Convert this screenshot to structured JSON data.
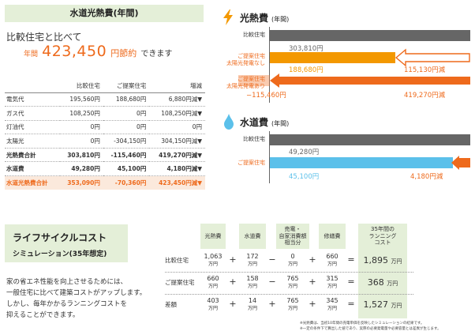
{
  "panel": {
    "title": "水道光熱費(年間)",
    "compare_text": "比較住宅と比べて",
    "saving_prefix": "年間",
    "saving_value": "423,450",
    "saving_unit": "円節約",
    "saving_suffix": "できます"
  },
  "compare_table": {
    "headers": [
      "",
      "比較住宅",
      "ご提案住宅",
      "増減"
    ],
    "rows": [
      {
        "label": "電気代",
        "a": "195,560円",
        "b": "188,680円",
        "d": "6,880円減▼"
      },
      {
        "label": "ガス代",
        "a": "108,250円",
        "b": "0円",
        "d": "108,250円減▼"
      },
      {
        "label": "灯油代",
        "a": "0円",
        "b": "0円",
        "d": "0円"
      },
      {
        "label": "太陽光",
        "a": "0円",
        "b": "-304,150円",
        "d": "304,150円減▼"
      },
      {
        "label": "光熱費合計",
        "a": "303,810円",
        "b": "-115,460円",
        "d": "419,270円減▼"
      },
      {
        "label": "水道費",
        "a": "49,280円",
        "b": "45,100円",
        "d": "4,180円減▼"
      },
      {
        "label": "水道光熱費合計",
        "a": "353,090円",
        "b": "-70,360円",
        "d": "423,450円減▼"
      }
    ]
  },
  "energy_chart": {
    "title": "光熱費",
    "subtitle": "(年間)",
    "rows": [
      {
        "label": "比較住宅",
        "value_label": "303,810円"
      },
      {
        "label": "ご提案住宅\n太陽光発電なし",
        "value_label": "188,680円",
        "diff_label": "115,130円減"
      },
      {
        "label": "ご提案住宅\n太陽光発電あり",
        "value_label": "−115,460円",
        "diff_label": "419,270円減"
      }
    ]
  },
  "water_chart": {
    "title": "水道費",
    "subtitle": "(年間)",
    "rows": [
      {
        "label": "比較住宅",
        "value_label": "49,280円"
      },
      {
        "label": "ご提案住宅",
        "value_label": "45,100円",
        "diff_label": "4,180円減"
      }
    ]
  },
  "lcc": {
    "title": "ライフサイクルコスト",
    "subtitle": "シミュレーション(35年想定)",
    "description": [
      "家の省エネ性能を向上させるためには、",
      "一般住宅に比べて建築コストがアップします。",
      "しかし、毎年かかるランニングコストを",
      "抑えることができます。"
    ],
    "headers": [
      "光熱費",
      "水道費",
      "売電・\n自家消費額\n相当分",
      "修繕費",
      "35年間の\nランニング\nコスト"
    ],
    "unit": "万円",
    "rows": [
      {
        "label": "比較住宅",
        "v": [
          "1,063",
          "172",
          "0",
          "660"
        ],
        "ops": [
          "+",
          "−",
          "+",
          "="
        ],
        "total": "1,895"
      },
      {
        "label": "ご提案住宅",
        "v": [
          "660",
          "158",
          "765",
          "315"
        ],
        "ops": [
          "+",
          "−",
          "+",
          "="
        ],
        "total": "368"
      },
      {
        "label": "差額",
        "v": [
          "403",
          "14",
          "765",
          "345"
        ],
        "ops": [
          "+",
          "+",
          "+",
          "="
        ],
        "total": "1,527"
      }
    ],
    "notes": [
      "※光熱費は、当初10年間の売電単価を反映したシミュレーションの結果です。",
      "※一定の条件下で算出した値であり、実際の必要発電量や必要容量とは差異が生じます。"
    ]
  },
  "colors": {
    "orange": "#ee6a1c",
    "light_orange": "#f39800",
    "blue": "#5bc0ea",
    "gray": "#666666",
    "green_bg": "#e4efd8"
  },
  "icons": {
    "energy": "lightning-icon",
    "water": "water-drop-icon"
  }
}
